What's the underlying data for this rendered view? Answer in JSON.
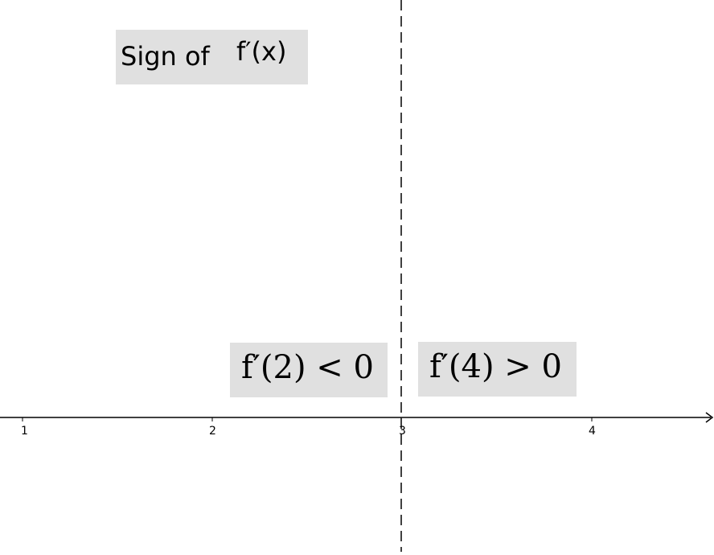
{
  "title": {
    "label": "Sign of",
    "expression": "f′(x)"
  },
  "intervals": [
    {
      "expression": "f′(2) < 0"
    },
    {
      "expression": "f′(4) > 0"
    }
  ],
  "axis": {
    "tick_labels": [
      "1",
      "2",
      "3",
      "4"
    ]
  },
  "critical_point": 3,
  "colors": {
    "box_fill": "#e0e0e0",
    "line": "#000000"
  }
}
